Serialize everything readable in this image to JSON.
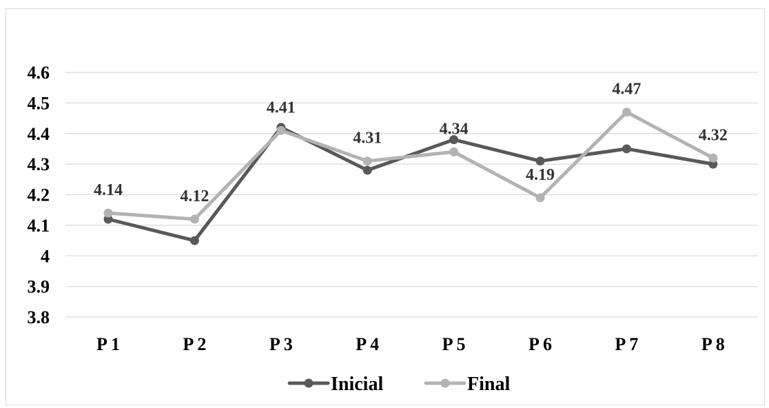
{
  "chart_data": {
    "type": "line",
    "categories": [
      "P 1",
      "P 2",
      "P 3",
      "P 4",
      "P 5",
      "P 6",
      "P 7",
      "P 8"
    ],
    "series": [
      {
        "name": "Inicial",
        "values": [
          4.12,
          4.05,
          4.42,
          4.28,
          4.38,
          4.31,
          4.35,
          4.3
        ],
        "color": "#595959"
      },
      {
        "name": "Final",
        "values": [
          4.14,
          4.12,
          4.41,
          4.31,
          4.34,
          4.19,
          4.47,
          4.32
        ],
        "color": "#b3b3b3"
      }
    ],
    "data_labels": {
      "series": "Final",
      "labels": [
        "4.14",
        "4.12",
        "4.41",
        "4.31",
        "4.34",
        "4.19",
        "4.47",
        "4.32"
      ]
    },
    "y_ticks": [
      "4.6",
      "4.5",
      "4.4",
      "4.3",
      "4.2",
      "4.1",
      "4",
      "3.9",
      "3.8"
    ],
    "ylim": [
      3.8,
      4.6
    ],
    "title": "",
    "xlabel": "",
    "ylabel": "",
    "grid": true,
    "legend_position": "bottom"
  }
}
